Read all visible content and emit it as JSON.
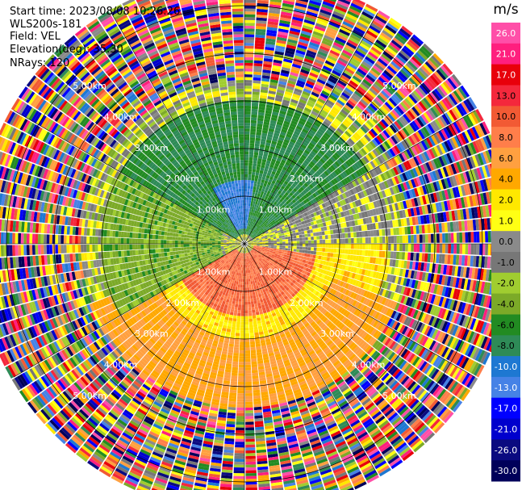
{
  "header": {
    "start_time": "Start time: 2023/08/08 10:26:26",
    "instrument": "WLS200s-181",
    "field": "Field: VEL",
    "elevation": "Elevation(deg): 35.30",
    "nrays": "NRays: 120"
  },
  "colorbar": {
    "unit": "m/s",
    "labels": [
      "26.0",
      "21.0",
      "17.0",
      "13.0",
      "10.0",
      "8.0",
      "6.0",
      "4.0",
      "2.0",
      "1.0",
      "0.0",
      "-1.0",
      "-2.0",
      "-4.0",
      "-6.0",
      "-8.0",
      "-10.0",
      "-13.0",
      "-17.0",
      "-21.0",
      "-26.0",
      "-30.0"
    ],
    "colors": [
      "#ff4fa8",
      "#ff1f7e",
      "#e8000b",
      "#f4283c",
      "#f25a34",
      "#ff7e4a",
      "#ffa040",
      "#ffa800",
      "#ffe800",
      "#ffff14",
      "#8a8a8a",
      "#777777",
      "#a0cd30",
      "#7caa28",
      "#228b22",
      "#2e8b57",
      "#1e78d2",
      "#4682e6",
      "#0000ff",
      "#0000cd",
      "#0a0a80",
      "#00005a"
    ]
  },
  "chart_data": {
    "type": "heatmap",
    "projection": "polar-ppi",
    "field": "VEL",
    "units": "m/s",
    "elevation_deg": 35.3,
    "n_rays": 120,
    "range_ring_labels": [
      "1.00km",
      "2.00km",
      "3.00km",
      "4.00km",
      "5.00km"
    ],
    "range_rings_km": [
      1,
      2,
      3,
      4,
      5
    ],
    "max_range_km": 5.6,
    "colorbar_range": [
      -30,
      26
    ],
    "pattern": {
      "description_sectors": [
        {
          "azimuth_from": 300,
          "azimuth_to": 60,
          "range_km": [
            0.2,
            3.0
          ],
          "velocity": -6
        },
        {
          "azimuth_from": 330,
          "azimuth_to": 10,
          "range_km": [
            0.3,
            1.3
          ],
          "velocity": -10
        },
        {
          "azimuth_from": 60,
          "azimuth_to": 100,
          "range_km": [
            0.5,
            3.2
          ],
          "velocity": 0
        },
        {
          "azimuth_from": 100,
          "azimuth_to": 240,
          "range_km": [
            0.2,
            1.5
          ],
          "velocity": 10
        },
        {
          "azimuth_from": 90,
          "azimuth_to": 270,
          "range_km": [
            1.5,
            3.0
          ],
          "velocity": 3
        },
        {
          "azimuth_from": 110,
          "azimuth_to": 250,
          "range_km": [
            2.0,
            3.5
          ],
          "velocity": 6
        },
        {
          "azimuth_from": 240,
          "azimuth_to": 300,
          "range_km": [
            0.5,
            3.0
          ],
          "velocity": -3
        }
      ],
      "noise_beyond_km": 3.4
    }
  }
}
